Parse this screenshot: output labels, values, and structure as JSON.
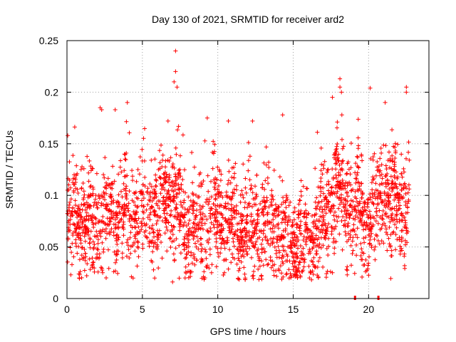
{
  "chart_data": {
    "type": "scatter",
    "title": "Day 130 of 2021, SRMTID for receiver ard2",
    "xlabel": "GPS time / hours",
    "ylabel": "SRMTID / TECUs",
    "xlim": [
      0,
      24
    ],
    "ylim": [
      0,
      0.25
    ],
    "xticks": [
      0,
      5,
      10,
      15,
      20
    ],
    "yticks": [
      0,
      0.05,
      0.1,
      0.15,
      0.2,
      0.25
    ],
    "ytick_labels": [
      "0",
      "0.05",
      "0.1",
      "0.15",
      "0.2",
      "0.25"
    ],
    "grid": true,
    "marker": "+",
    "color": "#ff0000",
    "trend": [
      {
        "x": 0.0,
        "y": 0.075
      },
      {
        "x": 1.0,
        "y": 0.075
      },
      {
        "x": 2.0,
        "y": 0.07
      },
      {
        "x": 3.0,
        "y": 0.08
      },
      {
        "x": 4.0,
        "y": 0.085
      },
      {
        "x": 5.0,
        "y": 0.08
      },
      {
        "x": 6.0,
        "y": 0.085
      },
      {
        "x": 7.0,
        "y": 0.1
      },
      {
        "x": 8.0,
        "y": 0.06
      },
      {
        "x": 9.0,
        "y": 0.075
      },
      {
        "x": 10.0,
        "y": 0.08
      },
      {
        "x": 11.0,
        "y": 0.08
      },
      {
        "x": 12.0,
        "y": 0.065
      },
      {
        "x": 13.0,
        "y": 0.075
      },
      {
        "x": 14.0,
        "y": 0.065
      },
      {
        "x": 15.0,
        "y": 0.055
      },
      {
        "x": 16.0,
        "y": 0.06
      },
      {
        "x": 17.0,
        "y": 0.075
      },
      {
        "x": 18.0,
        "y": 0.11
      },
      {
        "x": 19.0,
        "y": 0.085
      },
      {
        "x": 20.0,
        "y": 0.08
      },
      {
        "x": 21.0,
        "y": 0.095
      },
      {
        "x": 22.0,
        "y": 0.09
      },
      {
        "x": 22.7,
        "y": 0.085
      }
    ],
    "spread": 0.03,
    "point_count": 2600,
    "peaks": [
      {
        "x": 0.05,
        "y": 0.158
      },
      {
        "x": 2.2,
        "y": 0.185
      },
      {
        "x": 2.3,
        "y": 0.183
      },
      {
        "x": 3.2,
        "y": 0.183
      },
      {
        "x": 4.0,
        "y": 0.19
      },
      {
        "x": 6.7,
        "y": 0.172
      },
      {
        "x": 7.2,
        "y": 0.24
      },
      {
        "x": 7.2,
        "y": 0.22
      },
      {
        "x": 7.3,
        "y": 0.205
      },
      {
        "x": 7.1,
        "y": 0.21
      },
      {
        "x": 9.3,
        "y": 0.175
      },
      {
        "x": 10.7,
        "y": 0.172
      },
      {
        "x": 12.3,
        "y": 0.172
      },
      {
        "x": 14.3,
        "y": 0.178
      },
      {
        "x": 17.6,
        "y": 0.195
      },
      {
        "x": 18.1,
        "y": 0.213
      },
      {
        "x": 18.1,
        "y": 0.205
      },
      {
        "x": 18.2,
        "y": 0.2
      },
      {
        "x": 20.1,
        "y": 0.204
      },
      {
        "x": 21.1,
        "y": 0.19
      },
      {
        "x": 22.5,
        "y": 0.205
      },
      {
        "x": 22.5,
        "y": 0.2
      },
      {
        "x": 7.0,
        "y": 0.016
      },
      {
        "x": 2.6,
        "y": 0.02
      }
    ],
    "zero_markers": [
      {
        "x": 19.1,
        "y": 0
      },
      {
        "x": 20.65,
        "y": 0
      }
    ]
  }
}
